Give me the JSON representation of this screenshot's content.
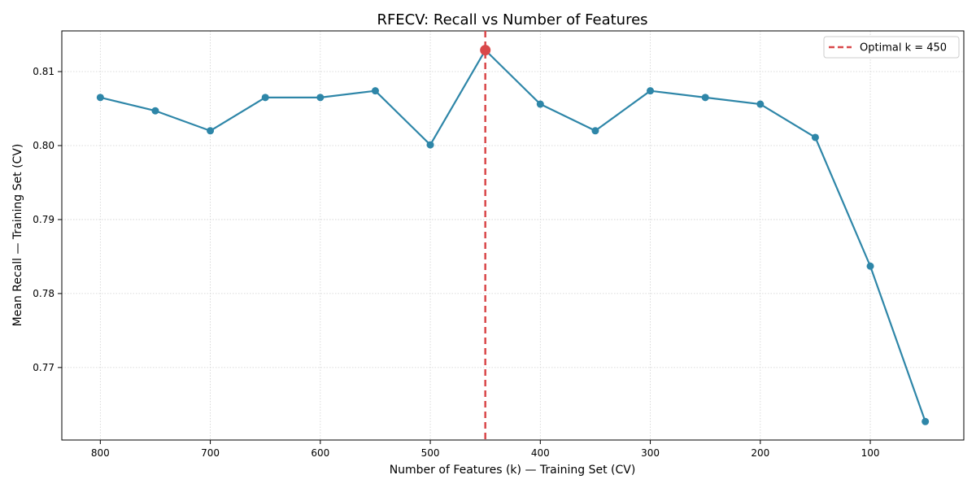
{
  "chart_data": {
    "type": "line",
    "title": "RFECV: Recall vs Number of Features",
    "xlabel": "Number of Features (k) — Training Set (CV)",
    "ylabel": "Mean Recall — Training Set (CV)",
    "x_reversed": true,
    "xlim": [
      835,
      15
    ],
    "ylim": [
      0.7602,
      0.8155
    ],
    "xticks": [
      800,
      700,
      600,
      500,
      400,
      300,
      200,
      100
    ],
    "yticks": [
      0.77,
      0.78,
      0.79,
      0.8,
      0.81
    ],
    "grid": true,
    "legend_position": "top-right",
    "series": [
      {
        "x": [
          800,
          750,
          700,
          650,
          600,
          550,
          500,
          450,
          400,
          350,
          300,
          250,
          200,
          150,
          100,
          50
        ],
        "values": [
          0.8065,
          0.8047,
          0.802,
          0.8065,
          0.8065,
          0.8074,
          0.8001,
          0.8129,
          0.8056,
          0.802,
          0.8074,
          0.8065,
          0.8056,
          0.8011,
          0.7837,
          0.7627
        ],
        "color": "#2e86a8"
      }
    ],
    "optimal": {
      "x": 450,
      "y": 0.8129,
      "label": "Optimal k = 450",
      "color": "#d9484a"
    }
  }
}
